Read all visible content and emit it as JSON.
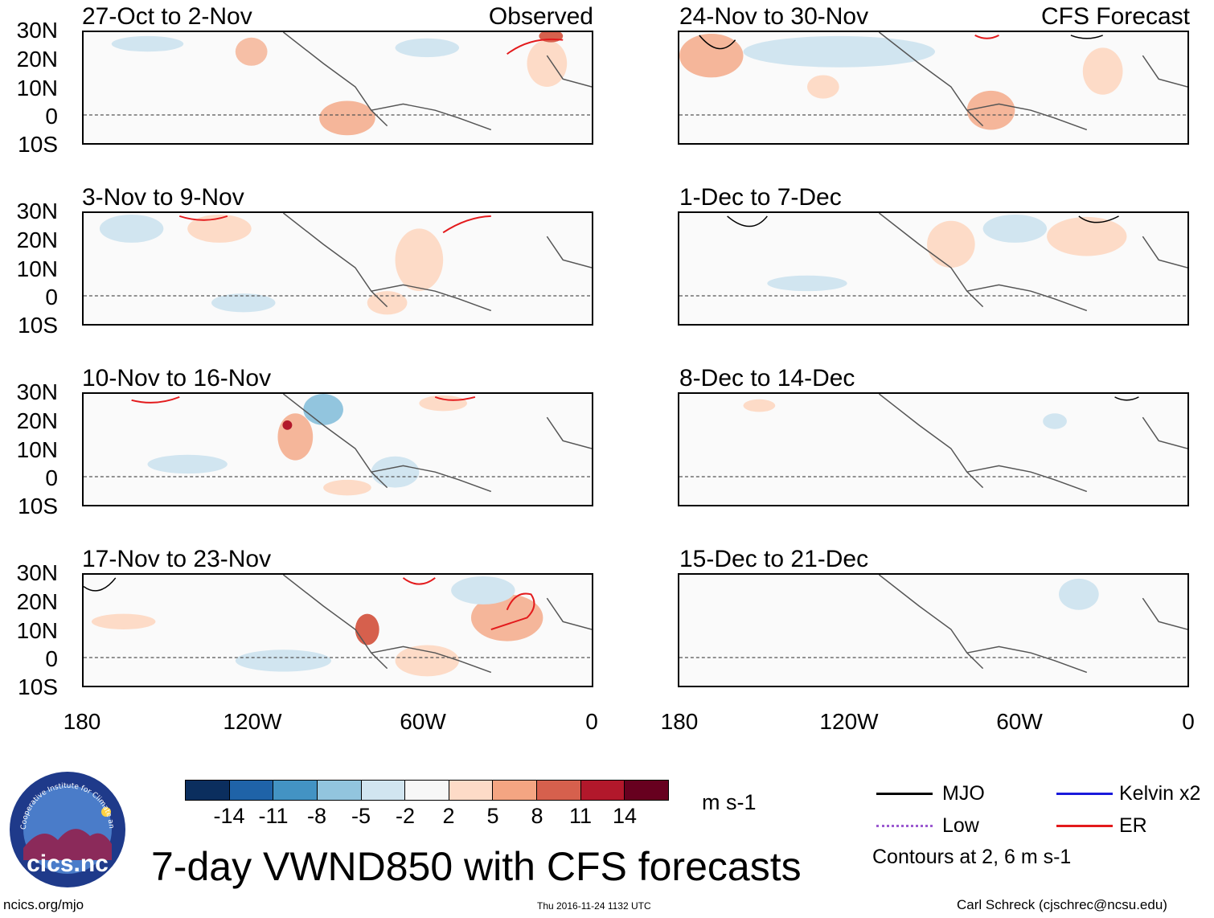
{
  "panels_left": [
    {
      "title": "27-Oct to 2-Nov",
      "label": "Observed"
    },
    {
      "title": "3-Nov to 9-Nov",
      "label": ""
    },
    {
      "title": "10-Nov to 16-Nov",
      "label": ""
    },
    {
      "title": "17-Nov to 23-Nov",
      "label": ""
    }
  ],
  "panels_right": [
    {
      "title": "24-Nov to 30-Nov",
      "label": "CFS Forecast"
    },
    {
      "title": "1-Dec to 7-Dec",
      "label": ""
    },
    {
      "title": "8-Dec to 14-Dec",
      "label": ""
    },
    {
      "title": "15-Dec to 21-Dec",
      "label": ""
    }
  ],
  "lat_labels": [
    "30N",
    "20N",
    "10N",
    "0",
    "10S"
  ],
  "lon_labels": [
    "180",
    "120W",
    "60W",
    "0"
  ],
  "colorbar": {
    "colors": [
      "#0b2e5e",
      "#1f63a8",
      "#4393c3",
      "#92c5de",
      "#d1e5f0",
      "#f7f7f7",
      "#fddbc7",
      "#f4a582",
      "#d6604d",
      "#b2182b",
      "#67001f"
    ],
    "ticks": [
      "-14",
      "-11",
      "-8",
      "-5",
      "-2",
      "2",
      "5",
      "8",
      "11",
      "14"
    ],
    "units": "m s-1"
  },
  "legend": {
    "mjo": {
      "label": "MJO",
      "color": "#000000"
    },
    "kelvin": {
      "label": "Kelvin x2",
      "color": "#1a1adb"
    },
    "low": {
      "label": "Low",
      "color": "#9b59d0"
    },
    "er": {
      "label": "ER",
      "color": "#e31a1c"
    },
    "contours_note": "Contours at 2, 6 m s-1"
  },
  "logo_text": "cics.nc",
  "logo_ring_text": "Cooperative Institute for Climate and Satellites",
  "title": "7-day VWND850 with CFS forecasts",
  "footer": {
    "left": "ncics.org/mjo",
    "center": "Thu 2016-11-24 1132 UTC",
    "right": "Carl Schreck (cjschrec@ncsu.edu)"
  }
}
